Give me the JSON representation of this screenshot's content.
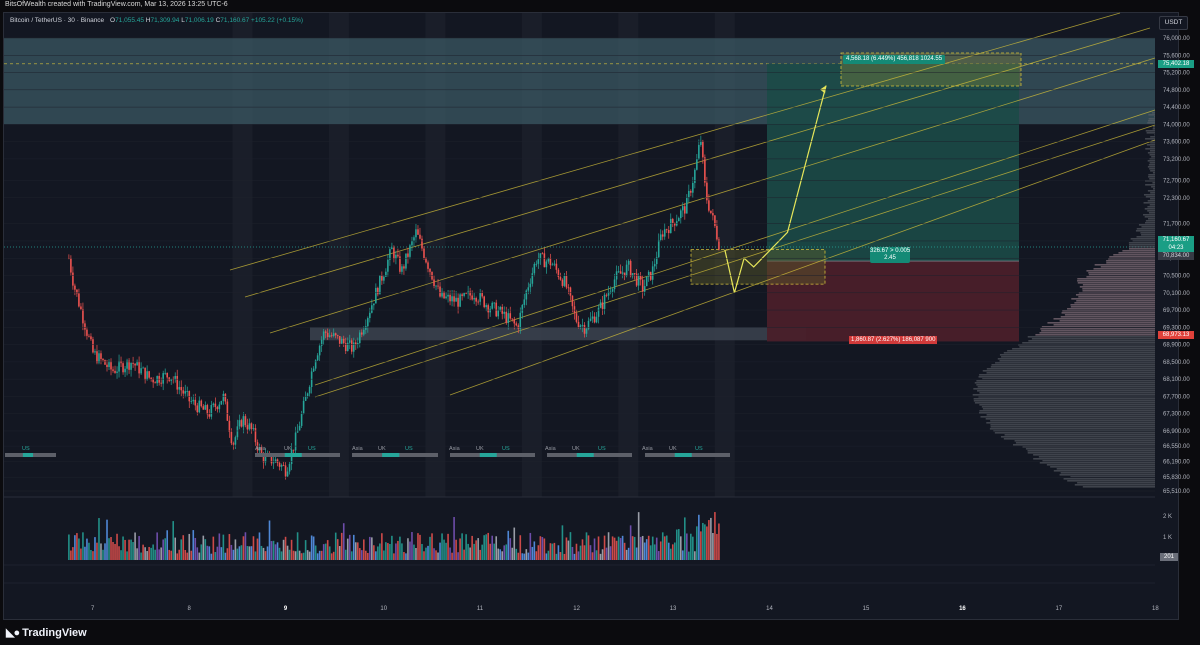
{
  "header": {
    "caption": "BitsOfWealth created with TradingView.com, Mar 13, 2026 13:25 UTC-6"
  },
  "legend": {
    "symbol": "Bitcoin / TetherUS · 30 · Binance",
    "open_label": "O",
    "open": "71,055.45",
    "high_label": "H",
    "high": "71,309.94",
    "low_label": "L",
    "low": "71,006.19",
    "close_label": "C",
    "close": "71,160.67",
    "change": "+105.22 (+0.15%)"
  },
  "currency_button": "USDT",
  "price_axis": {
    "ticks": [
      "76,000.00",
      "75,600.00",
      "75,200.00",
      "74,800.00",
      "74,400.00",
      "74,000.00",
      "73,600.00",
      "73,200.00",
      "72,700.00",
      "72,300.00",
      "71,700.00",
      "71,300.00",
      "70,900.00",
      "70,500.00",
      "70,100.00",
      "69,700.00",
      "69,300.00",
      "68,900.00",
      "68,500.00",
      "68,100.00",
      "67,700.00",
      "67,300.00",
      "66,900.00",
      "66,550.00",
      "66,190.00",
      "65,830.00",
      "65,510.00"
    ],
    "badges": {
      "target": "75,402.18",
      "current_price": "71,160.67",
      "countdown": "04:23",
      "entry": "70,834.00",
      "stop": "68,973.13"
    }
  },
  "volume_axis": {
    "ticks": [
      "2 K",
      "1 K"
    ],
    "badge": "201"
  },
  "time_axis": {
    "ticks": [
      "7",
      "8",
      "9",
      "10",
      "11",
      "12",
      "13",
      "14",
      "15",
      "16",
      "17",
      "18"
    ]
  },
  "sessions": {
    "labels": [
      "US",
      "Asia",
      "UK",
      "US",
      "Asia",
      "UK",
      "US",
      "Asia",
      "UK",
      "US",
      "Asia",
      "UK",
      "US",
      "Asia",
      "UK",
      "US"
    ]
  },
  "position_tool": {
    "target_label": "4,568.18 (6.449%) 456,818 1024.55",
    "center_line1": "326.67 > 0.005",
    "center_line2": "2.45",
    "stop_label": "1,860.87 (2.627%) 186,087 900"
  },
  "colors": {
    "background": "#131722",
    "bull": "#26a69a",
    "bear": "#ef5350",
    "channel": "#d4c03a",
    "target_zone": "#3b5863",
    "stop_zone": "#4a1f2a",
    "take_profit": "#1c4a47"
  },
  "chart_data": {
    "type": "candlestick",
    "symbol": "Bitcoin / TetherUS",
    "interval": "30",
    "x_range": [
      "7",
      "18"
    ],
    "ylim": [
      65510,
      76000
    ],
    "price_path": [
      [
        6.75,
        70900
      ],
      [
        6.8,
        70300
      ],
      [
        6.9,
        69500
      ],
      [
        7.0,
        68700
      ],
      [
        7.2,
        68300
      ],
      [
        7.4,
        68500
      ],
      [
        7.6,
        68100
      ],
      [
        7.8,
        68200
      ],
      [
        8.0,
        67600
      ],
      [
        8.2,
        67300
      ],
      [
        8.35,
        67700
      ],
      [
        8.45,
        66600
      ],
      [
        8.55,
        67200
      ],
      [
        8.65,
        66900
      ],
      [
        8.75,
        66300
      ],
      [
        8.9,
        66200
      ],
      [
        9.0,
        66000
      ],
      [
        9.1,
        66700
      ],
      [
        9.2,
        67600
      ],
      [
        9.3,
        68600
      ],
      [
        9.4,
        69200
      ],
      [
        9.55,
        69000
      ],
      [
        9.7,
        68800
      ],
      [
        9.85,
        69600
      ],
      [
        10.0,
        70500
      ],
      [
        10.1,
        71100
      ],
      [
        10.2,
        70600
      ],
      [
        10.35,
        71500
      ],
      [
        10.45,
        70900
      ],
      [
        10.6,
        70000
      ],
      [
        10.8,
        69900
      ],
      [
        10.95,
        70100
      ],
      [
        11.1,
        69800
      ],
      [
        11.25,
        69600
      ],
      [
        11.4,
        69300
      ],
      [
        11.5,
        70200
      ],
      [
        11.6,
        70900
      ],
      [
        11.75,
        70800
      ],
      [
        11.9,
        70300
      ],
      [
        12.0,
        69500
      ],
      [
        12.1,
        69300
      ],
      [
        12.25,
        69700
      ],
      [
        12.4,
        70400
      ],
      [
        12.55,
        70700
      ],
      [
        12.7,
        70200
      ],
      [
        12.8,
        70600
      ],
      [
        12.9,
        71500
      ],
      [
        13.0,
        71700
      ],
      [
        13.15,
        72100
      ],
      [
        13.25,
        73000
      ],
      [
        13.3,
        73700
      ],
      [
        13.35,
        72400
      ],
      [
        13.45,
        71600
      ],
      [
        13.5,
        71160
      ]
    ],
    "projection_path": [
      [
        13.55,
        71100
      ],
      [
        13.65,
        70100
      ],
      [
        13.75,
        70900
      ],
      [
        13.85,
        70700
      ],
      [
        14.2,
        71500
      ],
      [
        14.6,
        74900
      ]
    ],
    "zones": {
      "resistance": [
        74000,
        76000
      ],
      "support": [
        69000,
        69300
      ],
      "entry_box": [
        70300,
        71100
      ]
    },
    "long_position": {
      "entry": 70834,
      "target": 75402.18,
      "stop": 68973.13,
      "reward_risk": "2.45"
    },
    "volume_max": "2 K"
  }
}
